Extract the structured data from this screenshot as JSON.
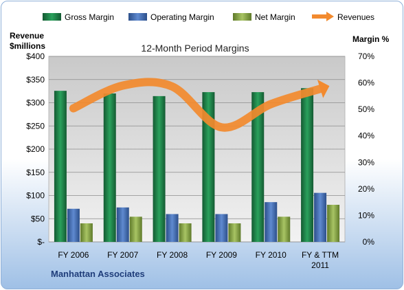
{
  "chart_data": {
    "type": "bar",
    "title": "12-Month Period Margins",
    "left_axis_label": [
      "Revenue",
      "$millions"
    ],
    "right_axis_label": "Margin %",
    "footer": "Manhattan Associates",
    "categories": [
      "FY 2006",
      "FY 2007",
      "FY 2008",
      "FY 2009",
      "FY 2010",
      "FY & TTM 2011"
    ],
    "left_axis": {
      "ylim": [
        0,
        400
      ],
      "ticks": [
        "$-",
        "$50",
        "$100",
        "$150",
        "$200",
        "$250",
        "$300",
        "$350",
        "$400"
      ]
    },
    "right_axis": {
      "ylim": [
        0,
        70
      ],
      "ticks": [
        "0%",
        "10%",
        "20%",
        "30%",
        "40%",
        "50%",
        "60%",
        "70%"
      ]
    },
    "series": [
      {
        "name": "Gross Margin",
        "type": "bar",
        "axis": "right",
        "color": "#1e8a4e",
        "values": [
          57,
          56,
          55,
          56.5,
          56.5,
          58
        ]
      },
      {
        "name": "Operating Margin",
        "type": "bar",
        "axis": "right",
        "color": "#4a74b8",
        "values": [
          12.5,
          13,
          10.5,
          10.5,
          15,
          18.5
        ]
      },
      {
        "name": "Net Margin",
        "type": "bar",
        "axis": "right",
        "color": "#92b050",
        "values": [
          7,
          9.5,
          7,
          7,
          9.5,
          14
        ]
      },
      {
        "name": "Revenues",
        "type": "line",
        "axis": "left",
        "color": "#f28a2e",
        "values": [
          288,
          337,
          335,
          247,
          297,
          330
        ]
      }
    ],
    "legend_position": "top",
    "grid": true
  }
}
